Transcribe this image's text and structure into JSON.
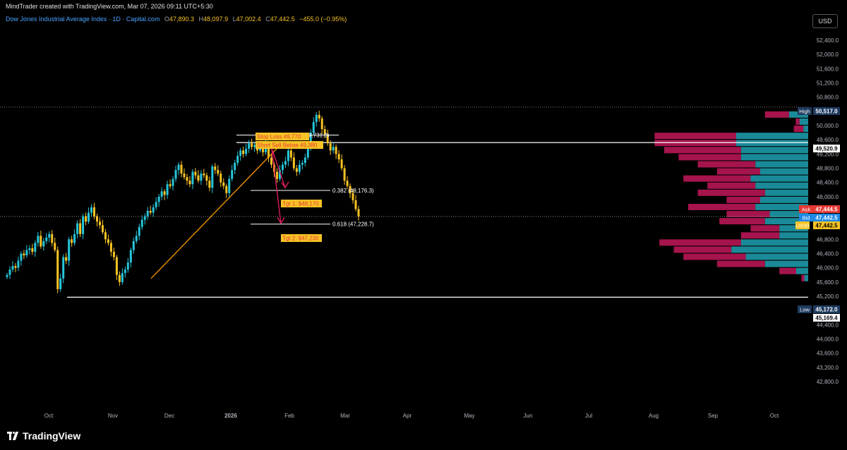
{
  "credit": "MindTrader created with TradingView.com, Mar 07, 2026 09:11 UTC+5:30",
  "legend": {
    "symbol": "Dow Jones Industrial Average Index · 1D · Capital.com",
    "o_label": "O",
    "open": "47,890.3",
    "h_label": "H",
    "high": "48,097.9",
    "l_label": "L",
    "low": "47,002.4",
    "c_label": "C",
    "close": "47,442.5",
    "change": "−455.0 (−0.95%)"
  },
  "currency_button": "USD",
  "brand": "TradingView",
  "colors": {
    "background": "#000000",
    "candle_up": "#26c6da",
    "candle_down": "#f7c325",
    "trend_line": "#ff9800",
    "arrow": "#e91e63",
    "vp_up": "#1fa2b3",
    "vp_down": "#c2185b",
    "label_bg": "#f7c325",
    "label_text": "#e53935"
  },
  "chart_data": {
    "type": "candlestick",
    "x_ticks": [
      "Oct",
      "Nov",
      "Dec",
      "2026",
      "Feb",
      "Mar",
      "Apr",
      "May",
      "Jun",
      "Jul",
      "Aug",
      "Sep",
      "Oct"
    ],
    "y_ticks": [
      "52,400.0",
      "52,000.0",
      "51,600.0",
      "51,200.0",
      "50,800.0",
      "50,400.0",
      "50,000.0",
      "49,600.0",
      "49,200.0",
      "48,800.0",
      "48,400.0",
      "48,000.0",
      "47,600.0",
      "47,200.0",
      "46,800.0",
      "46,400.0",
      "46,000.0",
      "45,600.0",
      "45,200.0",
      "44,800.0",
      "44,400.0",
      "44,000.0",
      "43,600.0",
      "43,200.0",
      "42,800.0"
    ],
    "y_tick_values": [
      52400,
      52000,
      51600,
      51200,
      50800,
      50400,
      50000,
      49600,
      49200,
      48800,
      48400,
      48000,
      47600,
      47200,
      46800,
      46400,
      46000,
      45600,
      45200,
      44800,
      44400,
      44000,
      43600,
      43200,
      42800
    ],
    "ylim": [
      42600,
      52800
    ],
    "closes": [
      45800,
      45950,
      46050,
      46000,
      46200,
      46400,
      46350,
      46500,
      46550,
      46450,
      46700,
      46900,
      46600,
      46750,
      46850,
      46950,
      46700,
      46500,
      45400,
      45700,
      46300,
      46200,
      46800,
      46700,
      46950,
      47250,
      46950,
      47450,
      47300,
      47550,
      47700,
      47450,
      47300,
      47200,
      47000,
      46800,
      46700,
      46450,
      46300,
      45800,
      45600,
      45850,
      45950,
      46150,
      46500,
      46750,
      46900,
      47150,
      47350,
      47450,
      47600,
      47550,
      47700,
      47850,
      48000,
      48150,
      48050,
      48350,
      48300,
      48500,
      48750,
      48900,
      48650,
      48550,
      48450,
      48350,
      48700,
      48600,
      48450,
      48650,
      48600,
      48450,
      48250,
      48850,
      48750,
      48650,
      48400,
      48300,
      48100,
      48500,
      48750,
      48950,
      49150,
      49300,
      49200,
      49350,
      49500,
      49400,
      49450,
      49300,
      49350,
      49250,
      49450,
      49100,
      48900,
      48700,
      48500,
      48750,
      48900,
      49000,
      49300,
      49100,
      48800,
      48700,
      48900,
      48950,
      49100,
      49400,
      49800,
      50100,
      50300,
      50200,
      49900,
      49750,
      49500,
      49300,
      49400,
      49200,
      49050,
      48800,
      48450,
      48300,
      48100,
      47900,
      47650,
      47442.5
    ],
    "horizontal_levels": [
      {
        "name": "session-high",
        "value": 50517.0,
        "label": "High",
        "price": "50,517.0"
      },
      {
        "name": "resistance-line",
        "value": 49520.9,
        "price": "49,520.9"
      },
      {
        "name": "current-price",
        "value": 47442.5,
        "label": "US30",
        "price": "47,442.5"
      },
      {
        "name": "session-low",
        "value": 45172.0,
        "label": "Low",
        "price": "45,172.0"
      }
    ],
    "price_tags": [
      {
        "name": "ask",
        "label": "Ask",
        "price": "47,444.5",
        "value": 47444.5
      },
      {
        "name": "bid",
        "label": "Bid",
        "price": "47,442.5",
        "value": 47442.5
      },
      {
        "name": "low-line",
        "price": "45,169.4",
        "value": 45169.4
      }
    ],
    "fib_levels": [
      {
        "ratio": "0.382",
        "price": "(48,176.3)",
        "value": 48176.3
      },
      {
        "ratio": "0.618",
        "price": "(47,228.7)",
        "value": 47228.7
      }
    ],
    "annotations": {
      "stop_loss": "Stop Loss 49,770",
      "short_sell": "Short Sell Below 49,380",
      "tgt1": "Tgt 1: $48,170",
      "tgt2": "Tgt 2: $47,230",
      "fib_top": "(49,731.8)"
    },
    "volume_profile": [
      {
        "price": 50300,
        "up": 40,
        "down": 50
      },
      {
        "price": 50100,
        "up": 18,
        "down": 8
      },
      {
        "price": 49900,
        "up": 10,
        "down": 20
      },
      {
        "price": 49700,
        "up": 150,
        "down": 170
      },
      {
        "price": 49500,
        "up": 150,
        "down": 170
      },
      {
        "price": 49300,
        "up": 140,
        "down": 160
      },
      {
        "price": 49100,
        "up": 140,
        "down": 130
      },
      {
        "price": 48900,
        "up": 110,
        "down": 120
      },
      {
        "price": 48700,
        "up": 100,
        "down": 90
      },
      {
        "price": 48500,
        "up": 120,
        "down": 140
      },
      {
        "price": 48300,
        "up": 110,
        "down": 100
      },
      {
        "price": 48100,
        "up": 90,
        "down": 140
      },
      {
        "price": 47900,
        "up": 100,
        "down": 70
      },
      {
        "price": 47700,
        "up": 110,
        "down": 140
      },
      {
        "price": 47500,
        "up": 80,
        "down": 90
      },
      {
        "price": 47300,
        "up": 90,
        "down": 95
      },
      {
        "price": 47100,
        "up": 60,
        "down": 60
      },
      {
        "price": 46900,
        "up": 60,
        "down": 80
      },
      {
        "price": 46700,
        "up": 140,
        "down": 170
      },
      {
        "price": 46500,
        "up": 160,
        "down": 120
      },
      {
        "price": 46300,
        "up": 130,
        "down": 130
      },
      {
        "price": 46100,
        "up": 90,
        "down": 100
      },
      {
        "price": 45900,
        "up": 25,
        "down": 35
      },
      {
        "price": 45700,
        "up": 8,
        "down": 6
      }
    ]
  }
}
